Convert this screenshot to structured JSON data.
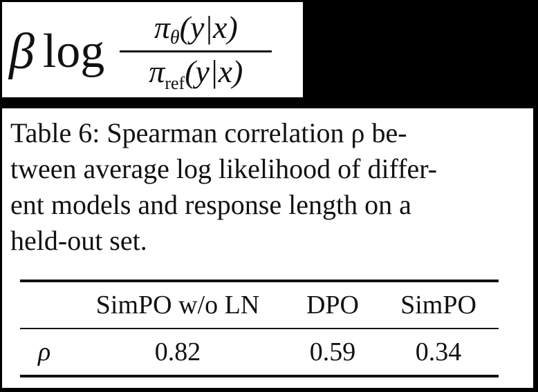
{
  "formula": {
    "beta": "β",
    "log": "log",
    "numerator": {
      "symbol": "π",
      "subscript": "θ",
      "argument": "(y|x)"
    },
    "denominator": {
      "symbol": "π",
      "subscript": "ref",
      "argument": "(y|x)"
    }
  },
  "caption": {
    "lines": [
      "Table 6:  Spearman correlation ρ be-",
      "tween average log likelihood of differ-",
      "ent models and response length on a",
      "held-out set."
    ]
  },
  "table": {
    "headers": [
      "",
      "SimPO w/o LN",
      "DPO",
      "SimPO"
    ],
    "rows": [
      [
        "ρ",
        "0.82",
        "0.59",
        "0.34"
      ]
    ]
  }
}
